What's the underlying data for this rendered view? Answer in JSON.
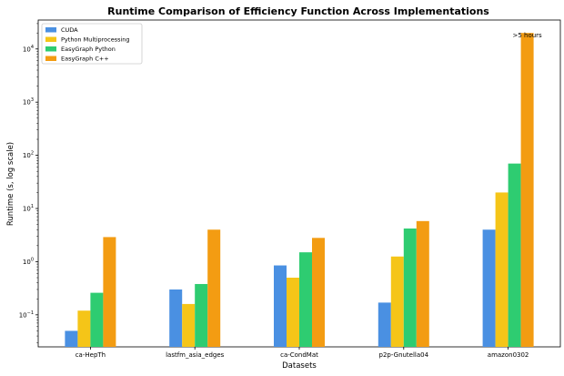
{
  "chart_data": {
    "type": "bar",
    "title": "Runtime Comparison of Efficiency Function Across Implementations",
    "xlabel": "Datasets",
    "ylabel": "Runtime (s, log scale)",
    "yscale": "log",
    "ylim": [
      0.025,
      35000
    ],
    "grid": false,
    "legend_position": "top-left",
    "categories": [
      "ca-HepTh",
      "lastfm_asia_edges",
      "ca-CondMat",
      "p2p-Gnutella04",
      "amazon0302"
    ],
    "series": [
      {
        "name": "CUDA",
        "color": "#4a90e2",
        "values": [
          0.05,
          0.3,
          0.85,
          0.17,
          4.0
        ]
      },
      {
        "name": "Python Multiprocessing",
        "color": "#f5c518",
        "values": [
          0.12,
          0.16,
          0.5,
          1.25,
          20
        ]
      },
      {
        "name": "EasyGraph Python",
        "color": "#2ecc71",
        "values": [
          0.26,
          0.38,
          1.5,
          4.2,
          70
        ]
      },
      {
        "name": "EasyGraph C++",
        "color": "#f39c12",
        "values": [
          2.9,
          4.0,
          2.8,
          5.8,
          20000
        ]
      }
    ],
    "yticks": [
      {
        "value": 0.1,
        "base": "10",
        "exp": "−1"
      },
      {
        "value": 1,
        "base": "10",
        "exp": "0"
      },
      {
        "value": 10,
        "base": "10",
        "exp": "1"
      },
      {
        "value": 100,
        "base": "10",
        "exp": "2"
      },
      {
        "value": 1000,
        "base": "10",
        "exp": "3"
      },
      {
        "value": 10000,
        "base": "10",
        "exp": "4"
      }
    ],
    "annotations": [
      {
        "text": ">5 hours",
        "category_index": 4,
        "series_index": 3
      }
    ]
  }
}
